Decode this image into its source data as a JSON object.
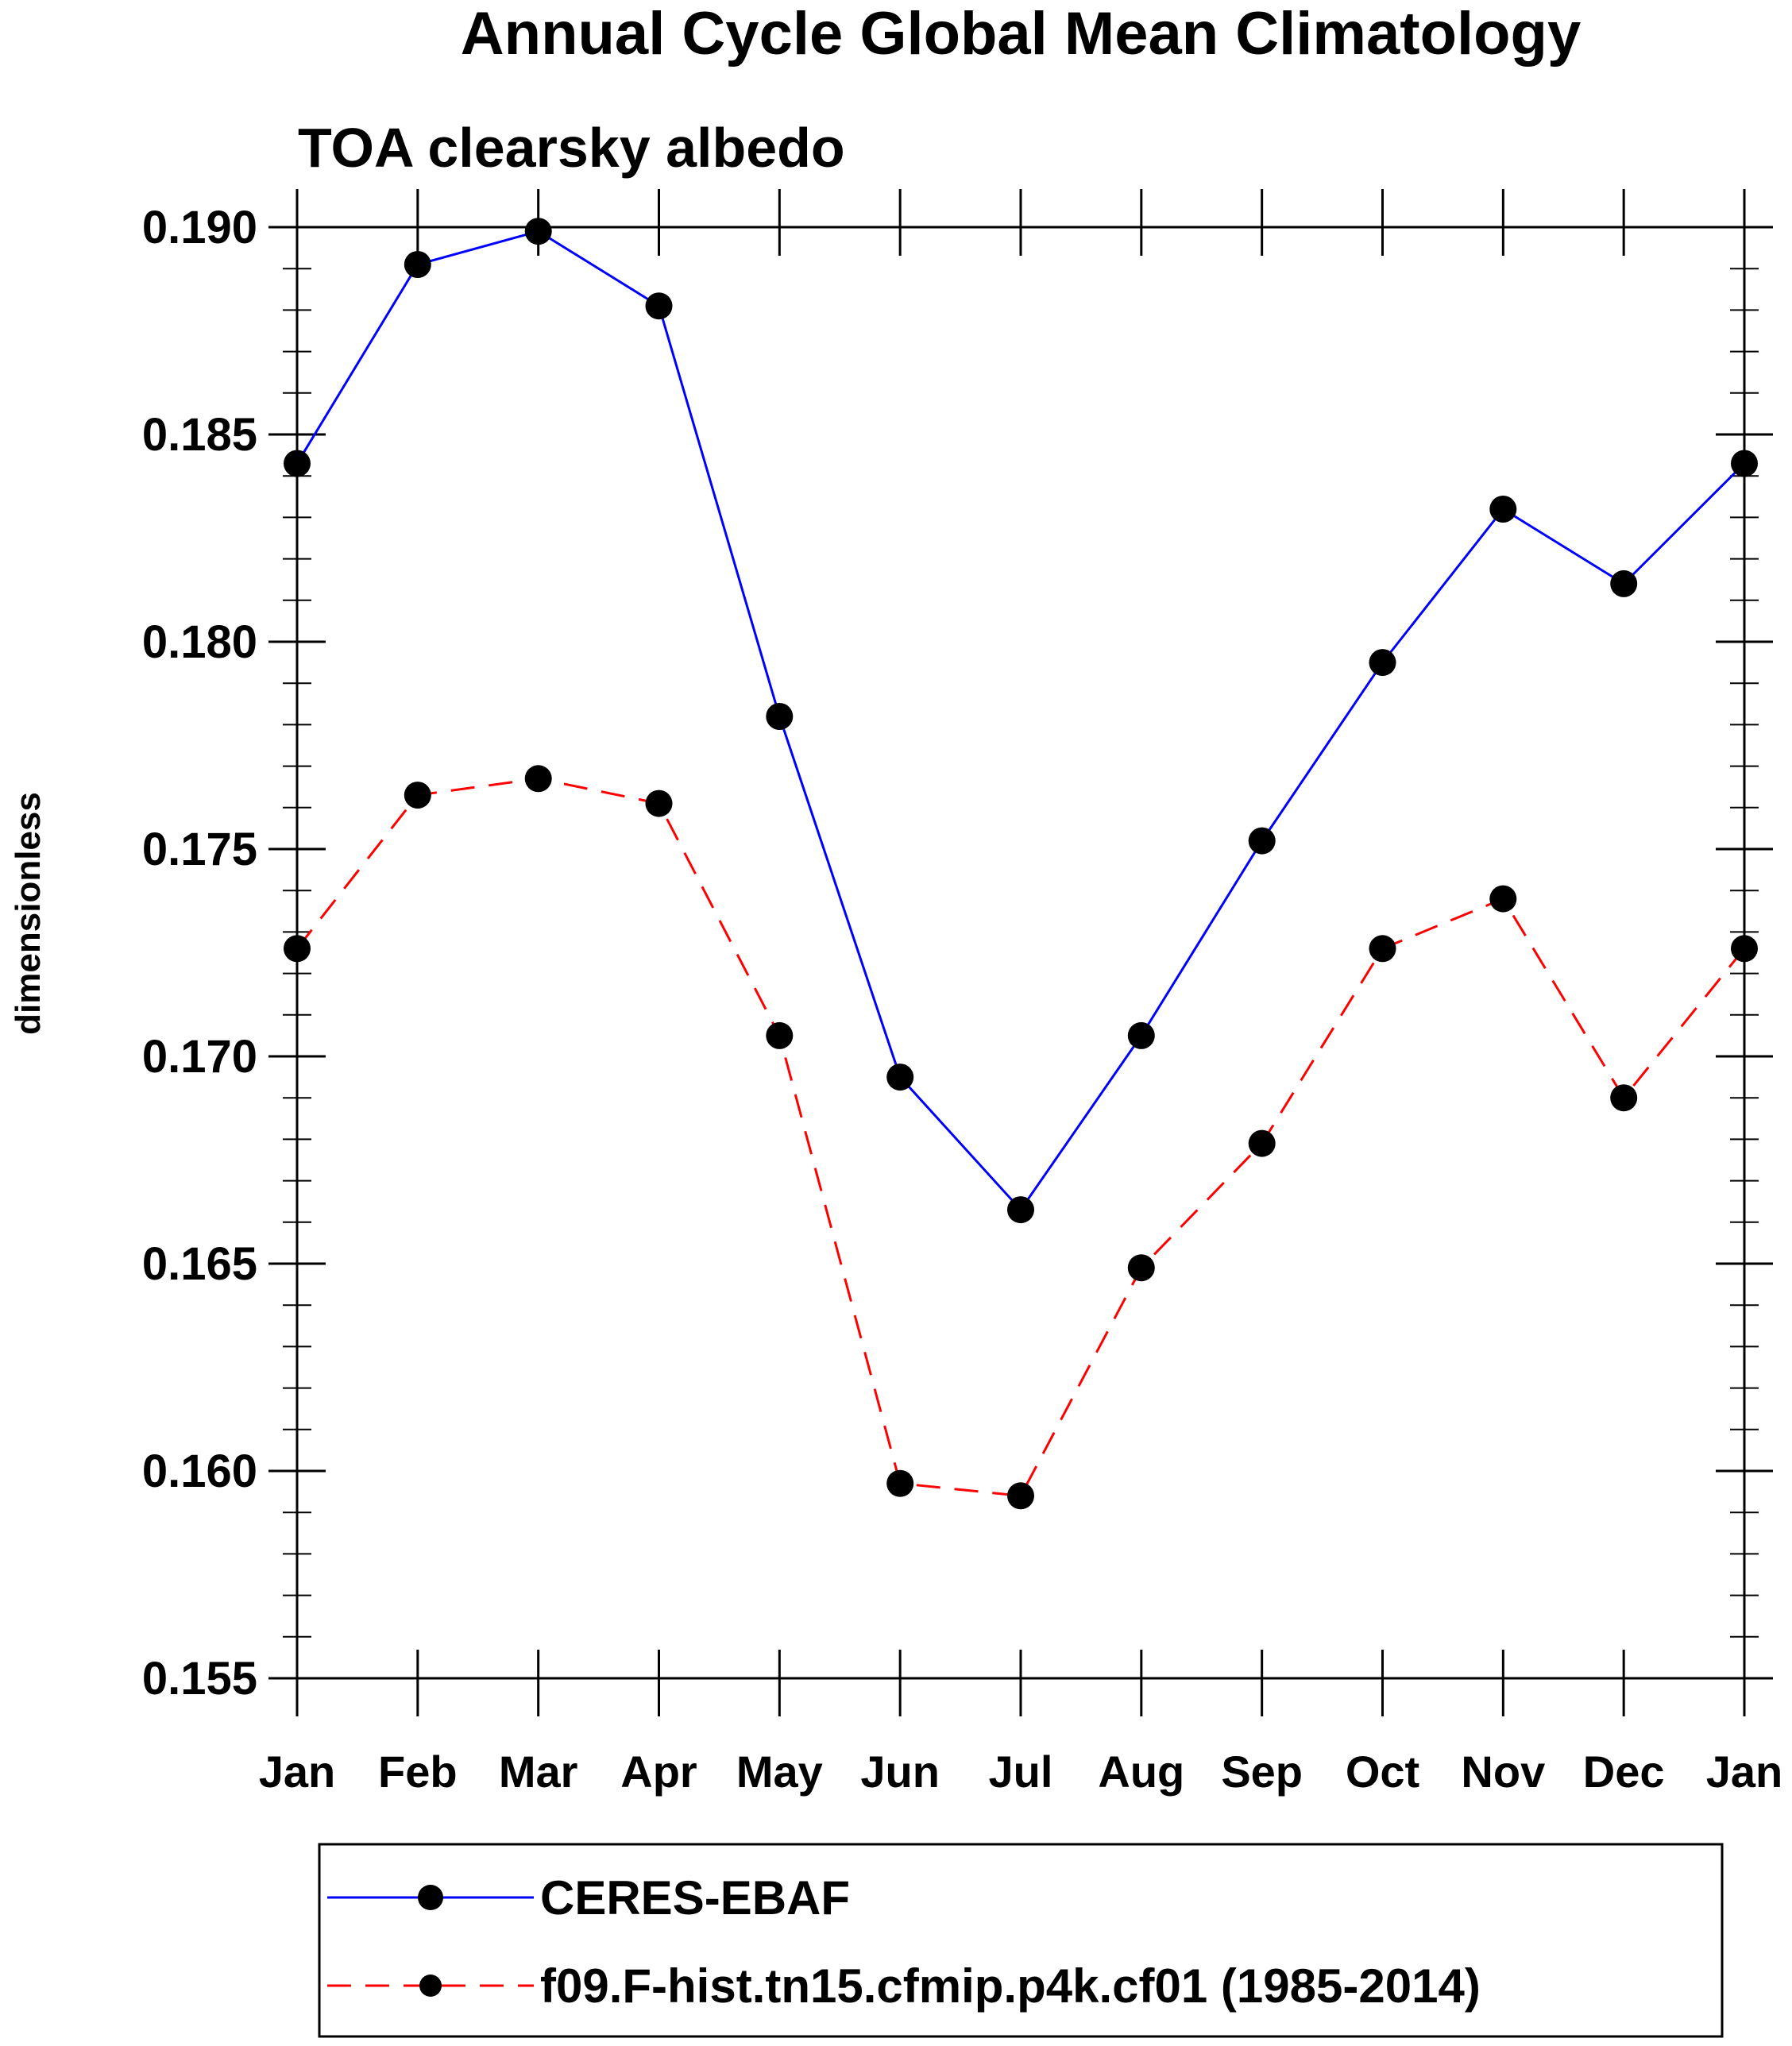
{
  "chart_data": {
    "type": "line",
    "title": "Annual Cycle Global Mean Climatology",
    "subtitle": "TOA clearsky albedo",
    "xlabel": "",
    "ylabel": "dimensionless",
    "categories": [
      "Jan",
      "Feb",
      "Mar",
      "Apr",
      "May",
      "Jun",
      "Jul",
      "Aug",
      "Sep",
      "Oct",
      "Nov",
      "Dec",
      "Jan"
    ],
    "ylim": [
      0.155,
      0.19
    ],
    "yticks": [
      "0.190",
      "0.185",
      "0.180",
      "0.175",
      "0.170",
      "0.165",
      "0.160",
      "0.155"
    ],
    "ytick_values": [
      0.19,
      0.185,
      0.18,
      0.175,
      0.17,
      0.165,
      0.16,
      0.155
    ],
    "legend_position": "bottom",
    "series": [
      {
        "name": "CERES-EBAF",
        "color": "#0000ff",
        "line_style": "solid",
        "marker": "circle",
        "values": [
          0.1843,
          0.1891,
          0.1899,
          0.1881,
          0.1782,
          0.1695,
          0.1663,
          0.1705,
          0.1752,
          0.1795,
          0.1832,
          0.1814,
          0.1843
        ]
      },
      {
        "name": "f09.F-hist.tn15.cfmip.p4k.cf01 (1985-2014)",
        "color": "#ff0000",
        "line_style": "dashed",
        "marker": "circle",
        "values": [
          0.1726,
          0.1763,
          0.1767,
          0.1761,
          0.1705,
          0.1597,
          0.1594,
          0.1649,
          0.1679,
          0.1726,
          0.1738,
          0.169,
          0.1726
        ]
      }
    ]
  }
}
